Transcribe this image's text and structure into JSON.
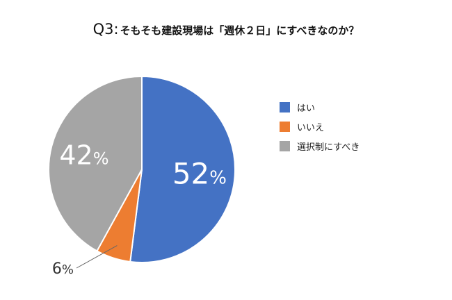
{
  "chart_data": {
    "type": "pie",
    "title_prefix": "Q3:",
    "title": "そもそも建設現場は「週休２日」にすべきなのか？",
    "categories": [
      "はい",
      "いいえ",
      "選択制にすべき"
    ],
    "values": [
      52,
      6,
      42
    ],
    "labels": [
      "52",
      "6",
      "42"
    ],
    "unit": "%",
    "colors": [
      "#4472C4",
      "#ED7D31",
      "#A5A5A5"
    ],
    "label_colors": [
      "#ffffff",
      "#333333",
      "#ffffff"
    ],
    "legend_position": "right",
    "start_angle_deg": 0,
    "direction": "clockwise"
  }
}
